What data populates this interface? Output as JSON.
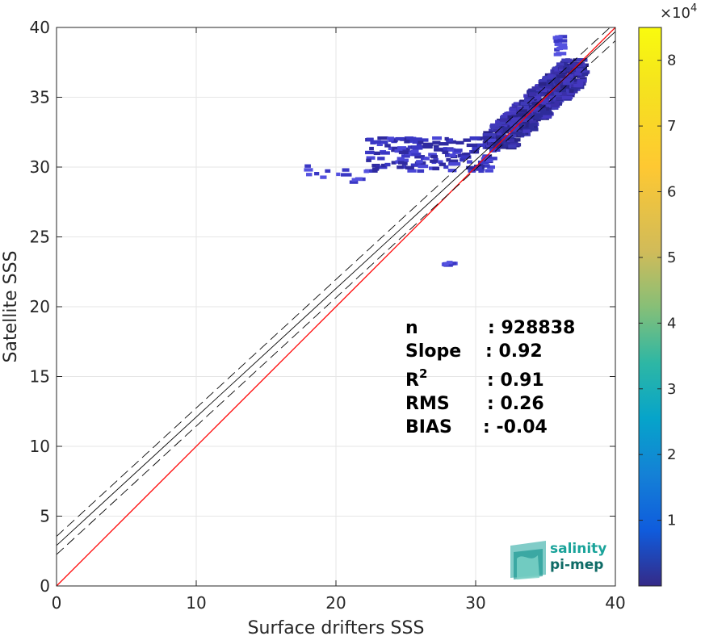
{
  "chart_data": {
    "type": "heatmap",
    "title": "",
    "xlabel": "Surface drifters SSS",
    "ylabel": "Satellite SSS",
    "xlim": [
      0,
      40
    ],
    "ylim": [
      0,
      40
    ],
    "xticks": [
      "0",
      "10",
      "20",
      "30",
      "40"
    ],
    "yticks": [
      "0",
      "5",
      "10",
      "15",
      "20",
      "25",
      "30",
      "35",
      "40"
    ],
    "grid": true,
    "colormap": "parula",
    "colorbar": {
      "range": [
        0,
        85000
      ],
      "ticks": [
        "1",
        "2",
        "3",
        "4",
        "5",
        "6",
        "7",
        "8"
      ],
      "tick_values": [
        10000,
        20000,
        30000,
        40000,
        50000,
        60000,
        70000,
        80000
      ],
      "exponent_base": "×10",
      "exponent_power": "4"
    },
    "lines": [
      {
        "name": "identity",
        "slope": 1.0,
        "intercept": 0.0,
        "color": "#ff0000",
        "style": "solid"
      },
      {
        "name": "fit",
        "slope": 0.92,
        "intercept": 2.9,
        "color": "#000000",
        "style": "solid"
      },
      {
        "name": "fit-upper",
        "slope": 0.92,
        "intercept": 3.55,
        "color": "#000000",
        "style": "dashed"
      },
      {
        "name": "fit-lower",
        "slope": 0.92,
        "intercept": 2.25,
        "color": "#000000",
        "style": "dashed"
      }
    ],
    "density_regions": [
      {
        "x": [
          30.5,
          37.5
        ],
        "y": [
          31.5,
          37.8
        ],
        "level": "high"
      },
      {
        "x": [
          22,
          31
        ],
        "y": [
          29.8,
          32.2
        ],
        "level": "low"
      },
      {
        "x": [
          17.5,
          22
        ],
        "y": [
          29,
          30.2
        ],
        "level": "sparse"
      },
      {
        "x": [
          27.5,
          28.2
        ],
        "y": [
          23.1,
          23.3
        ],
        "level": "sparse"
      },
      {
        "x": [
          35.5,
          36
        ],
        "y": [
          38,
          39.5
        ],
        "level": "sparse"
      }
    ],
    "stats": [
      {
        "label": "n",
        "value": ": 928838"
      },
      {
        "label": "Slope",
        "value": ": 0.92"
      },
      {
        "label": "R",
        "label_sup": "2",
        "value": ": 0.91"
      },
      {
        "label": "RMS",
        "value": ": 0.26"
      },
      {
        "label": "BIAS",
        "value": ": -0.04"
      }
    ]
  },
  "logo": {
    "line1": "salinity",
    "line2": "pi-mep",
    "color1": "#1aa39a",
    "color2": "#0e6b66"
  },
  "colors": {
    "axis": "#262626",
    "grid": "#e6e6e6",
    "identity": "#ff0000",
    "fit": "#000000"
  }
}
